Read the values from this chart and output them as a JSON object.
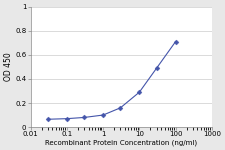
{
  "x": [
    0.03,
    0.1,
    0.3,
    1,
    3,
    10,
    30,
    100
  ],
  "y": [
    0.065,
    0.07,
    0.08,
    0.1,
    0.16,
    0.29,
    0.49,
    0.71
  ],
  "line_color": "#4455aa",
  "marker": "D",
  "marker_size": 2.5,
  "marker_color": "#4455aa",
  "xlabel": "Recombinant Protein Concentration (ng/ml)",
  "ylabel": "OD 450",
  "xlim": [
    0.01,
    1000
  ],
  "ylim": [
    0,
    1
  ],
  "yticks": [
    0,
    0.2,
    0.4,
    0.6,
    0.8,
    1
  ],
  "ytick_labels": [
    "0",
    "0.2",
    "0.4",
    "0.6",
    "0.8",
    "1"
  ],
  "xtick_locs": [
    0.01,
    0.1,
    1,
    10,
    100,
    1000
  ],
  "xtick_labels": [
    "0.01",
    "0.1",
    "1",
    "10",
    "100",
    "1000"
  ],
  "xlabel_fontsize": 5.0,
  "ylabel_fontsize": 5.5,
  "tick_fontsize": 5.0,
  "plot_bg_color": "#ffffff",
  "outer_bg_color": "#e8e8e8",
  "grid_color": "#cccccc",
  "linewidth": 0.8
}
